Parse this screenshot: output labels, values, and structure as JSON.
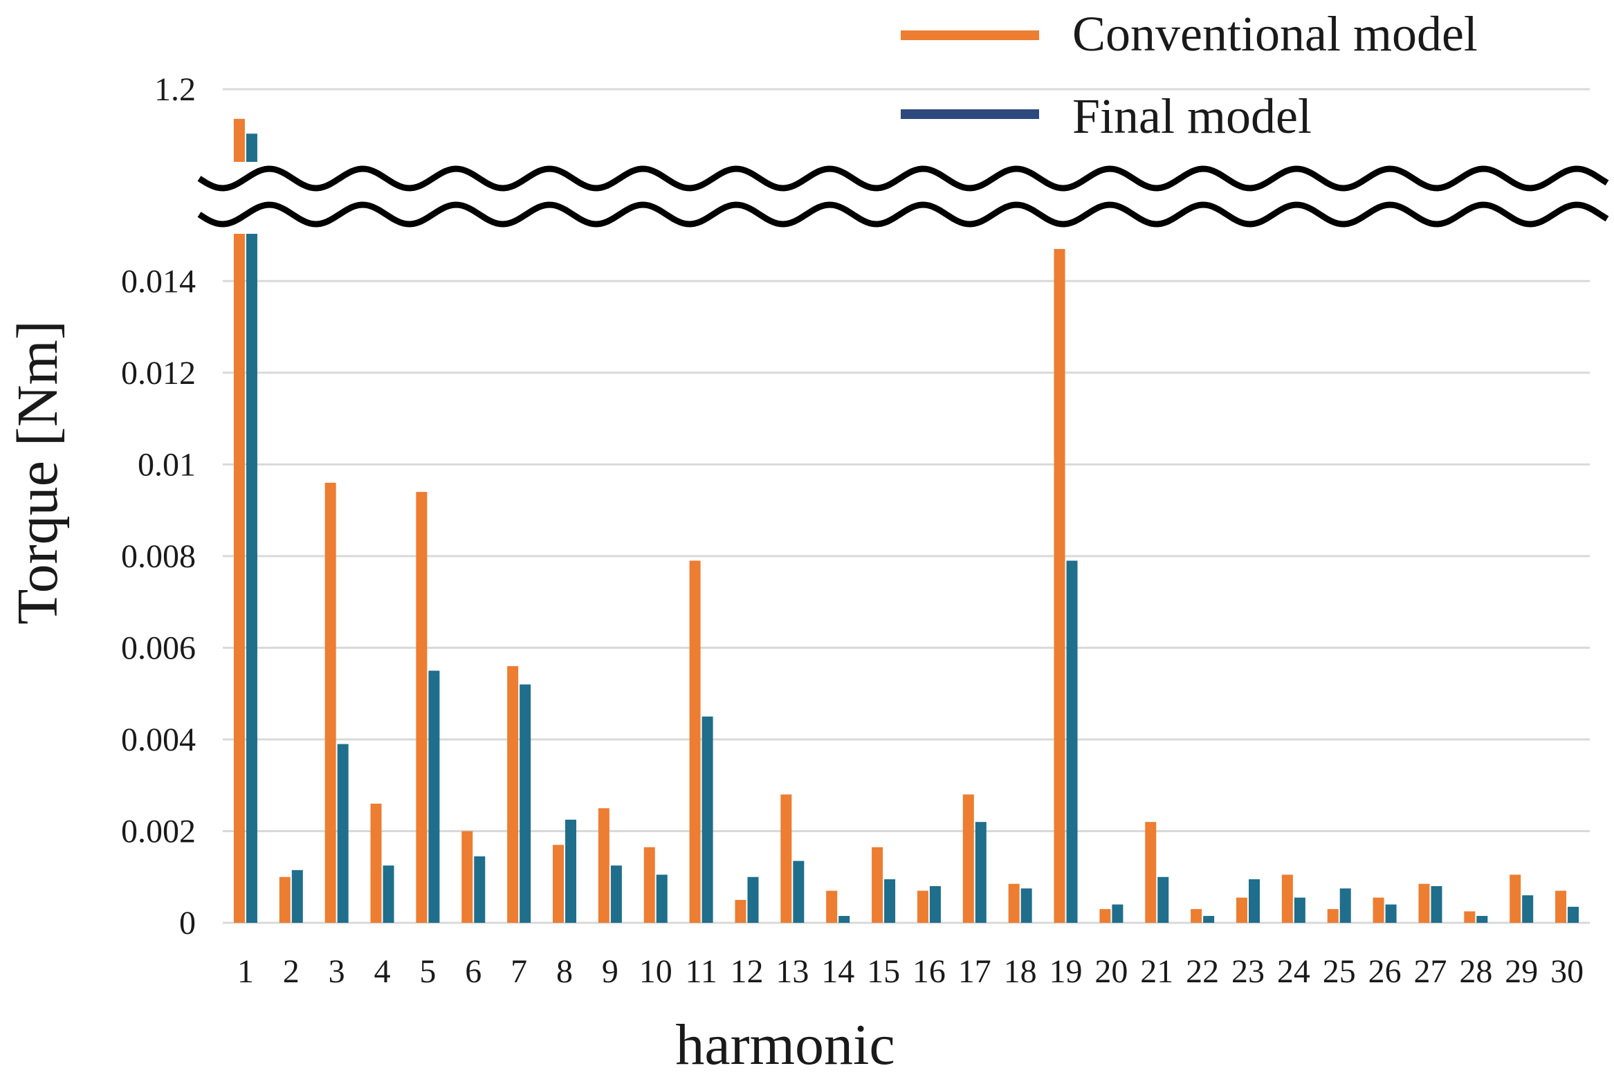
{
  "colors": {
    "conventional": "#ED7D31",
    "final": "#1F6E8C",
    "legend_final": "#2E4A7D",
    "grid": "#D9D9D9",
    "break": "#000000"
  },
  "chart_data": {
    "type": "bar",
    "title": "",
    "xlabel": "harmonic",
    "ylabel": "Torque [Nm]",
    "categories": [
      "1",
      "2",
      "3",
      "4",
      "5",
      "6",
      "7",
      "8",
      "9",
      "10",
      "11",
      "12",
      "13",
      "14",
      "15",
      "16",
      "17",
      "18",
      "19",
      "20",
      "21",
      "22",
      "23",
      "24",
      "25",
      "26",
      "27",
      "28",
      "29",
      "30"
    ],
    "series": [
      {
        "name": "Conventional model",
        "values": [
          1.14,
          0.001,
          0.0096,
          0.0026,
          0.0094,
          0.002,
          0.0056,
          0.0017,
          0.0025,
          0.00165,
          0.0079,
          0.0005,
          0.0028,
          0.0007,
          0.00165,
          0.0007,
          0.0028,
          0.00085,
          0.0147,
          0.0003,
          0.0022,
          0.0003,
          0.00055,
          0.00105,
          0.0003,
          0.00055,
          0.00085,
          0.00025,
          0.00105,
          0.0007
        ]
      },
      {
        "name": "Final model",
        "values": [
          1.11,
          0.00115,
          0.0039,
          0.00125,
          0.0055,
          0.00145,
          0.0052,
          0.00225,
          0.00125,
          0.00105,
          0.0045,
          0.001,
          0.00135,
          0.00015,
          0.00095,
          0.0008,
          0.0022,
          0.00075,
          0.0079,
          0.0004,
          0.001,
          0.00015,
          0.00095,
          0.00055,
          0.00075,
          0.0004,
          0.0008,
          0.00015,
          0.0006,
          0.00035
        ]
      }
    ],
    "y_axis_lower": {
      "ylim": [
        0,
        0.015
      ],
      "ticks": [
        0,
        0.002,
        0.004,
        0.006,
        0.008,
        0.01,
        0.012,
        0.014
      ],
      "tick_labels": [
        "0",
        "0.002",
        "0.004",
        "0.006",
        "0.008",
        "0.01",
        "0.012",
        "0.014"
      ]
    },
    "y_axis_upper": {
      "ylim": [
        1.05,
        1.2
      ],
      "ticks": [
        1.2
      ],
      "tick_labels": [
        "1.2"
      ]
    },
    "axis_break": true,
    "grid": true,
    "legend": {
      "position": "top-right",
      "entries": [
        "Conventional model",
        "Final model"
      ]
    }
  }
}
